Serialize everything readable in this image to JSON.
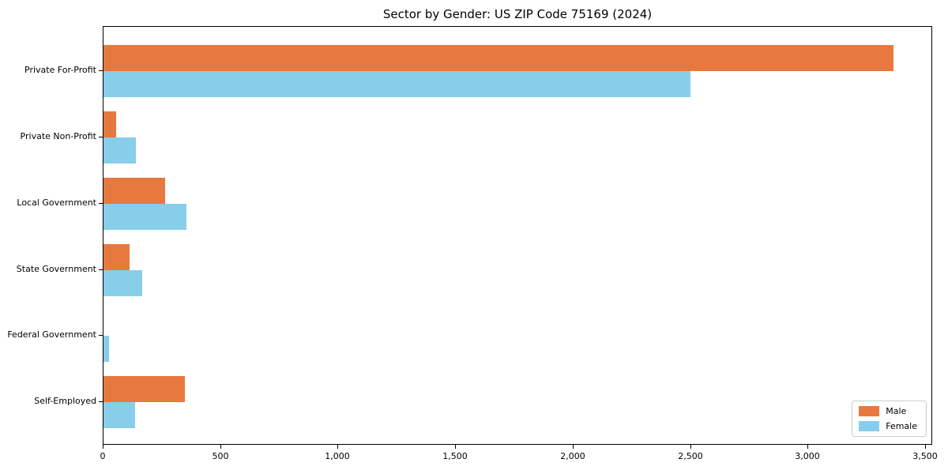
{
  "title": "Sector by Gender: US ZIP Code 75169 (2024)",
  "chart_data": {
    "type": "bar",
    "orientation": "horizontal",
    "title": "Sector by Gender: US ZIP Code 75169 (2024)",
    "xlabel": "",
    "ylabel": "",
    "categories": [
      "Private For-Profit",
      "Private Non-Profit",
      "Local Government",
      "State Government",
      "Federal Government",
      "Self-Employed"
    ],
    "series": [
      {
        "name": "Male",
        "color": "#e7793e",
        "values": [
          3362,
          53,
          262,
          110,
          0,
          347
        ]
      },
      {
        "name": "Female",
        "color": "#87ceeb",
        "values": [
          2497,
          139,
          352,
          164,
          25,
          136
        ]
      }
    ],
    "xlim": [
      0,
      3530
    ],
    "x_tick_values": [
      0,
      500,
      1000,
      1500,
      2000,
      2500,
      3000,
      3500
    ],
    "x_tick_labels": [
      "0",
      "500",
      "1,000",
      "1,500",
      "2,000",
      "2,500",
      "3,000",
      "3,500"
    ],
    "grid": false,
    "legend_position": "lower right",
    "plot_border_color": "#000000",
    "background_color": "#ffffff"
  }
}
